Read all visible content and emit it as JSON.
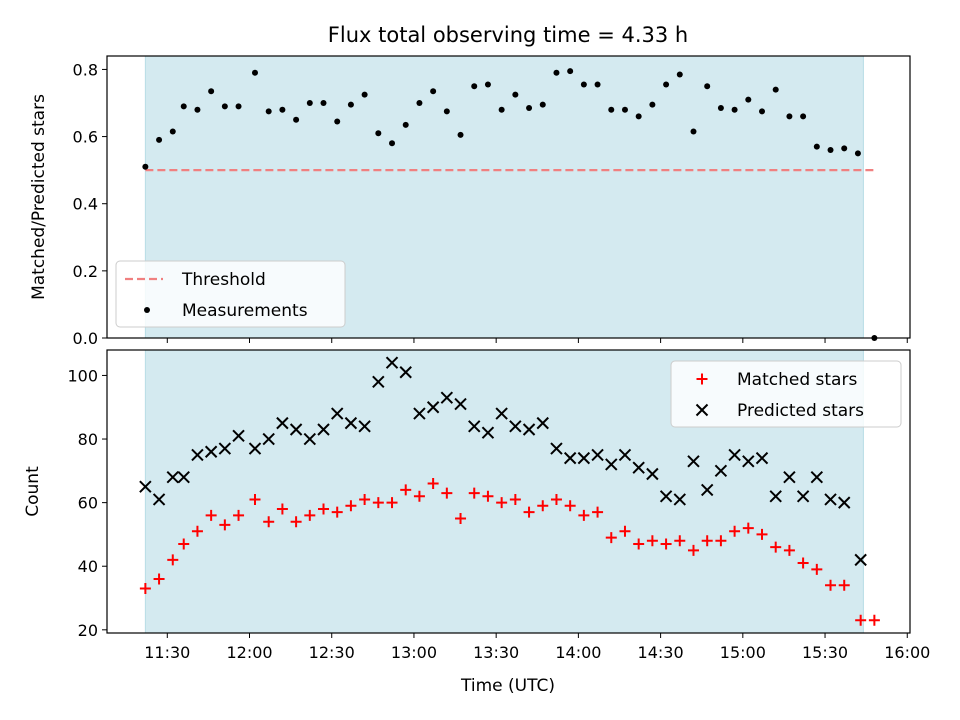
{
  "chart_data": {
    "title": "Flux total observing time = 4.33 h",
    "xlabel": "Time (UTC)",
    "x_ticks": [
      "11:30",
      "12:00",
      "12:30",
      "13:00",
      "13:30",
      "14:00",
      "14:30",
      "15:00",
      "15:30",
      "16:00"
    ],
    "colors": {
      "shade": "#d4eaf0",
      "shade_edge": "#b8dde6",
      "threshold": "#f08080",
      "measurement": "#000000",
      "matched": "#ff0000",
      "predicted": "#000000"
    },
    "panels": [
      {
        "type": "scatter",
        "ylabel": "Matched/Predicted stars",
        "xlim": [
          "11:08",
          "16:01"
        ],
        "ylim": [
          0.0,
          0.84
        ],
        "y_ticks": [
          0.0,
          0.2,
          0.4,
          0.6,
          0.8
        ],
        "shaded_region": [
          "11:22",
          "15:44"
        ],
        "legend_position": "lower-left",
        "series": [
          {
            "name": "Threshold",
            "style": "dashed-line",
            "x": [
              "11:22",
              "15:48"
            ],
            "y": [
              0.5,
              0.5
            ]
          },
          {
            "name": "Measurements",
            "style": "dot",
            "x": [
              "11:22",
              "11:27",
              "11:32",
              "11:36",
              "11:41",
              "11:46",
              "11:51",
              "11:56",
              "12:02",
              "12:07",
              "12:12",
              "12:17",
              "12:22",
              "12:27",
              "12:32",
              "12:37",
              "12:42",
              "12:47",
              "12:52",
              "12:57",
              "13:02",
              "13:07",
              "13:12",
              "13:17",
              "13:22",
              "13:27",
              "13:32",
              "13:37",
              "13:42",
              "13:47",
              "13:52",
              "13:57",
              "14:02",
              "14:07",
              "14:12",
              "14:17",
              "14:22",
              "14:27",
              "14:32",
              "14:37",
              "14:42",
              "14:47",
              "14:52",
              "14:57",
              "15:02",
              "15:07",
              "15:12",
              "15:17",
              "15:22",
              "15:27",
              "15:32",
              "15:37",
              "15:42",
              "15:48"
            ],
            "y": [
              0.51,
              0.59,
              0.615,
              0.69,
              0.68,
              0.735,
              0.69,
              0.69,
              0.79,
              0.675,
              0.68,
              0.65,
              0.7,
              0.7,
              0.645,
              0.695,
              0.725,
              0.61,
              0.58,
              0.635,
              0.7,
              0.735,
              0.675,
              0.605,
              0.75,
              0.755,
              0.68,
              0.725,
              0.685,
              0.695,
              0.79,
              0.795,
              0.755,
              0.755,
              0.68,
              0.68,
              0.66,
              0.695,
              0.755,
              0.785,
              0.615,
              0.75,
              0.685,
              0.68,
              0.71,
              0.675,
              0.74,
              0.66,
              0.66,
              0.57,
              0.56,
              0.565,
              0.55,
              0.0
            ]
          }
        ]
      },
      {
        "type": "scatter",
        "ylabel": "Count",
        "xlim": [
          "11:08",
          "16:01"
        ],
        "ylim": [
          19,
          108
        ],
        "y_ticks": [
          20,
          40,
          60,
          80,
          100
        ],
        "shaded_region": [
          "11:22",
          "15:44"
        ],
        "legend_position": "upper-right",
        "series": [
          {
            "name": "Matched stars",
            "style": "plus",
            "x": [
              "11:22",
              "11:27",
              "11:32",
              "11:36",
              "11:41",
              "11:46",
              "11:51",
              "11:56",
              "12:02",
              "12:07",
              "12:12",
              "12:17",
              "12:22",
              "12:27",
              "12:32",
              "12:37",
              "12:42",
              "12:47",
              "12:52",
              "12:57",
              "13:02",
              "13:07",
              "13:12",
              "13:17",
              "13:22",
              "13:27",
              "13:32",
              "13:37",
              "13:42",
              "13:47",
              "13:52",
              "13:57",
              "14:02",
              "14:07",
              "14:12",
              "14:17",
              "14:22",
              "14:27",
              "14:32",
              "14:37",
              "14:42",
              "14:47",
              "14:52",
              "14:57",
              "15:02",
              "15:07",
              "15:12",
              "15:17",
              "15:22",
              "15:27",
              "15:32",
              "15:37",
              "15:43",
              "15:48"
            ],
            "y": [
              33,
              36,
              42,
              47,
              51,
              56,
              53,
              56,
              61,
              54,
              58,
              54,
              56,
              58,
              57,
              59,
              61,
              60,
              60,
              64,
              62,
              66,
              63,
              55,
              63,
              62,
              60,
              61,
              57,
              59,
              61,
              59,
              56,
              57,
              49,
              51,
              47,
              48,
              47,
              48,
              45,
              48,
              48,
              51,
              52,
              50,
              46,
              45,
              41,
              39,
              34,
              34,
              23,
              23
            ]
          },
          {
            "name": "Predicted stars",
            "style": "x",
            "x": [
              "11:22",
              "11:27",
              "11:32",
              "11:36",
              "11:41",
              "11:46",
              "11:51",
              "11:56",
              "12:02",
              "12:07",
              "12:12",
              "12:17",
              "12:22",
              "12:27",
              "12:32",
              "12:37",
              "12:42",
              "12:47",
              "12:52",
              "12:57",
              "13:02",
              "13:07",
              "13:12",
              "13:17",
              "13:22",
              "13:27",
              "13:32",
              "13:37",
              "13:42",
              "13:47",
              "13:52",
              "13:57",
              "14:02",
              "14:07",
              "14:12",
              "14:17",
              "14:22",
              "14:27",
              "14:32",
              "14:37",
              "14:42",
              "14:47",
              "14:52",
              "14:57",
              "15:02",
              "15:07",
              "15:12",
              "15:17",
              "15:22",
              "15:27",
              "15:32",
              "15:37",
              "15:43"
            ],
            "y": [
              65,
              61,
              68,
              68,
              75,
              76,
              77,
              81,
              77,
              80,
              85,
              83,
              80,
              83,
              88,
              85,
              84,
              98,
              104,
              101,
              88,
              90,
              93,
              91,
              84,
              82,
              88,
              84,
              83,
              85,
              77,
              74,
              74,
              75,
              72,
              75,
              71,
              69,
              62,
              61,
              73,
              64,
              70,
              75,
              73,
              74,
              62,
              68,
              62,
              68,
              61,
              60,
              42
            ]
          }
        ]
      }
    ]
  }
}
